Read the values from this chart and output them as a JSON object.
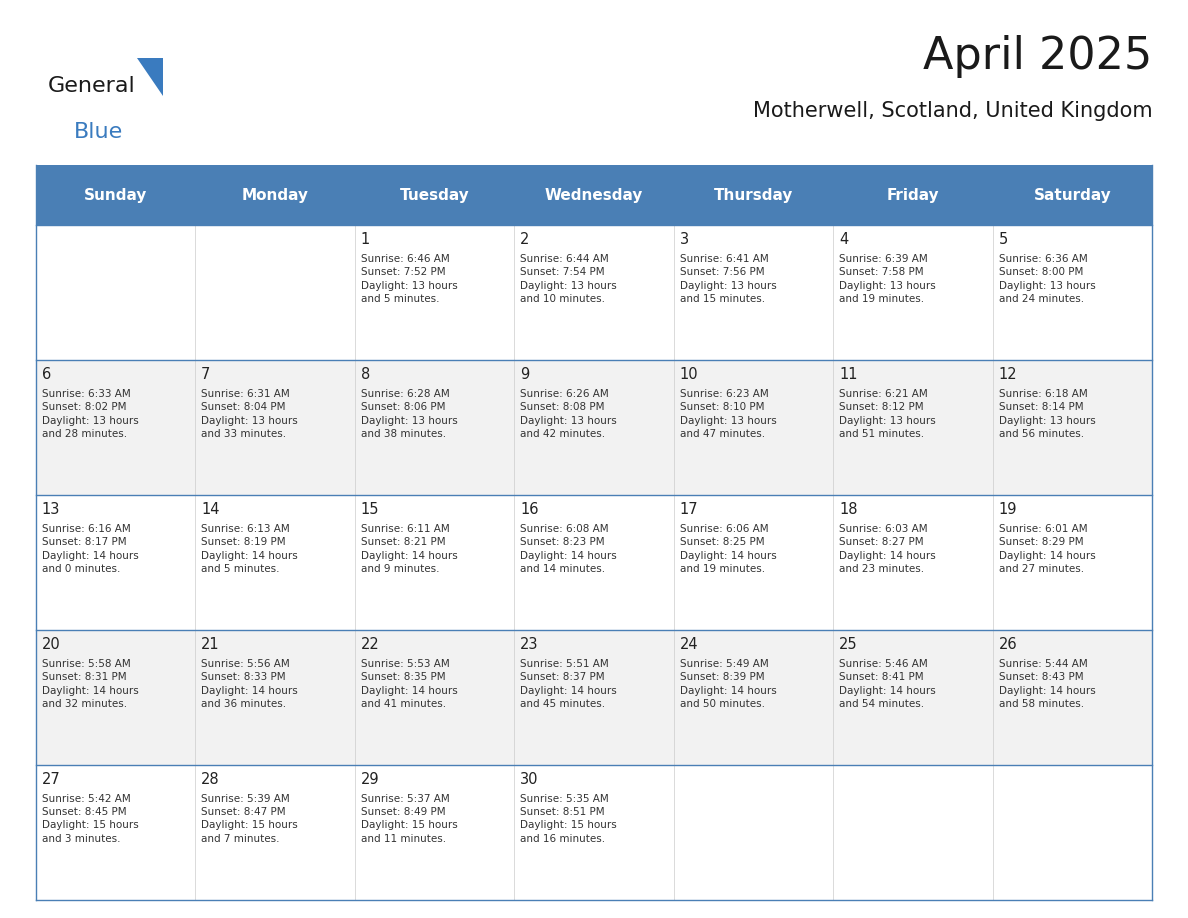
{
  "title": "April 2025",
  "subtitle": "Motherwell, Scotland, United Kingdom",
  "header_color": "#4a7fb5",
  "header_text_color": "#ffffff",
  "cell_bg_even": "#f2f2f2",
  "cell_bg_odd": "#ffffff",
  "border_color": "#4a7fb5",
  "day_headers": [
    "Sunday",
    "Monday",
    "Tuesday",
    "Wednesday",
    "Thursday",
    "Friday",
    "Saturday"
  ],
  "weeks": [
    [
      {
        "day": "",
        "info": ""
      },
      {
        "day": "",
        "info": ""
      },
      {
        "day": "1",
        "info": "Sunrise: 6:46 AM\nSunset: 7:52 PM\nDaylight: 13 hours\nand 5 minutes."
      },
      {
        "day": "2",
        "info": "Sunrise: 6:44 AM\nSunset: 7:54 PM\nDaylight: 13 hours\nand 10 minutes."
      },
      {
        "day": "3",
        "info": "Sunrise: 6:41 AM\nSunset: 7:56 PM\nDaylight: 13 hours\nand 15 minutes."
      },
      {
        "day": "4",
        "info": "Sunrise: 6:39 AM\nSunset: 7:58 PM\nDaylight: 13 hours\nand 19 minutes."
      },
      {
        "day": "5",
        "info": "Sunrise: 6:36 AM\nSunset: 8:00 PM\nDaylight: 13 hours\nand 24 minutes."
      }
    ],
    [
      {
        "day": "6",
        "info": "Sunrise: 6:33 AM\nSunset: 8:02 PM\nDaylight: 13 hours\nand 28 minutes."
      },
      {
        "day": "7",
        "info": "Sunrise: 6:31 AM\nSunset: 8:04 PM\nDaylight: 13 hours\nand 33 minutes."
      },
      {
        "day": "8",
        "info": "Sunrise: 6:28 AM\nSunset: 8:06 PM\nDaylight: 13 hours\nand 38 minutes."
      },
      {
        "day": "9",
        "info": "Sunrise: 6:26 AM\nSunset: 8:08 PM\nDaylight: 13 hours\nand 42 minutes."
      },
      {
        "day": "10",
        "info": "Sunrise: 6:23 AM\nSunset: 8:10 PM\nDaylight: 13 hours\nand 47 minutes."
      },
      {
        "day": "11",
        "info": "Sunrise: 6:21 AM\nSunset: 8:12 PM\nDaylight: 13 hours\nand 51 minutes."
      },
      {
        "day": "12",
        "info": "Sunrise: 6:18 AM\nSunset: 8:14 PM\nDaylight: 13 hours\nand 56 minutes."
      }
    ],
    [
      {
        "day": "13",
        "info": "Sunrise: 6:16 AM\nSunset: 8:17 PM\nDaylight: 14 hours\nand 0 minutes."
      },
      {
        "day": "14",
        "info": "Sunrise: 6:13 AM\nSunset: 8:19 PM\nDaylight: 14 hours\nand 5 minutes."
      },
      {
        "day": "15",
        "info": "Sunrise: 6:11 AM\nSunset: 8:21 PM\nDaylight: 14 hours\nand 9 minutes."
      },
      {
        "day": "16",
        "info": "Sunrise: 6:08 AM\nSunset: 8:23 PM\nDaylight: 14 hours\nand 14 minutes."
      },
      {
        "day": "17",
        "info": "Sunrise: 6:06 AM\nSunset: 8:25 PM\nDaylight: 14 hours\nand 19 minutes."
      },
      {
        "day": "18",
        "info": "Sunrise: 6:03 AM\nSunset: 8:27 PM\nDaylight: 14 hours\nand 23 minutes."
      },
      {
        "day": "19",
        "info": "Sunrise: 6:01 AM\nSunset: 8:29 PM\nDaylight: 14 hours\nand 27 minutes."
      }
    ],
    [
      {
        "day": "20",
        "info": "Sunrise: 5:58 AM\nSunset: 8:31 PM\nDaylight: 14 hours\nand 32 minutes."
      },
      {
        "day": "21",
        "info": "Sunrise: 5:56 AM\nSunset: 8:33 PM\nDaylight: 14 hours\nand 36 minutes."
      },
      {
        "day": "22",
        "info": "Sunrise: 5:53 AM\nSunset: 8:35 PM\nDaylight: 14 hours\nand 41 minutes."
      },
      {
        "day": "23",
        "info": "Sunrise: 5:51 AM\nSunset: 8:37 PM\nDaylight: 14 hours\nand 45 minutes."
      },
      {
        "day": "24",
        "info": "Sunrise: 5:49 AM\nSunset: 8:39 PM\nDaylight: 14 hours\nand 50 minutes."
      },
      {
        "day": "25",
        "info": "Sunrise: 5:46 AM\nSunset: 8:41 PM\nDaylight: 14 hours\nand 54 minutes."
      },
      {
        "day": "26",
        "info": "Sunrise: 5:44 AM\nSunset: 8:43 PM\nDaylight: 14 hours\nand 58 minutes."
      }
    ],
    [
      {
        "day": "27",
        "info": "Sunrise: 5:42 AM\nSunset: 8:45 PM\nDaylight: 15 hours\nand 3 minutes."
      },
      {
        "day": "28",
        "info": "Sunrise: 5:39 AM\nSunset: 8:47 PM\nDaylight: 15 hours\nand 7 minutes."
      },
      {
        "day": "29",
        "info": "Sunrise: 5:37 AM\nSunset: 8:49 PM\nDaylight: 15 hours\nand 11 minutes."
      },
      {
        "day": "30",
        "info": "Sunrise: 5:35 AM\nSunset: 8:51 PM\nDaylight: 15 hours\nand 16 minutes."
      },
      {
        "day": "",
        "info": ""
      },
      {
        "day": "",
        "info": ""
      },
      {
        "day": "",
        "info": ""
      }
    ]
  ],
  "logo_text_general": "General",
  "logo_text_blue": "Blue",
  "logo_color_general": "#1a1a1a",
  "logo_color_blue": "#3a7bbf",
  "logo_triangle_color": "#3a7bbf"
}
